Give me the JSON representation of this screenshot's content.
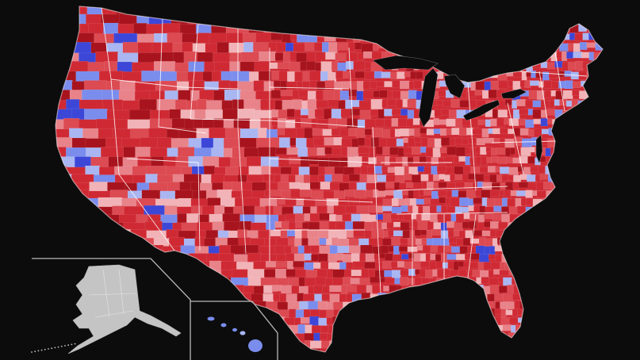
{
  "map": {
    "kind": "us-county-choropleth",
    "background_color": "#0c0c0c",
    "palette": {
      "red_dark": "#a8141d",
      "red": "#cf2a34",
      "red_mid": "#dc4a52",
      "red_light": "#e8838a",
      "pink": "#f1b3b7",
      "blue_light": "#a9b6f2",
      "blue": "#7a8ded",
      "blue_dark": "#3c47d8",
      "boundary": "#ffffff",
      "inset_fill": "#c4c4c4",
      "inset_border": "#b8b8b8"
    },
    "regions": [
      {
        "name": "contiguous-us",
        "fill": "red"
      },
      {
        "name": "alaska-inset",
        "fill": "inset_fill"
      },
      {
        "name": "hawaii-inset",
        "fill": "blue"
      }
    ]
  }
}
